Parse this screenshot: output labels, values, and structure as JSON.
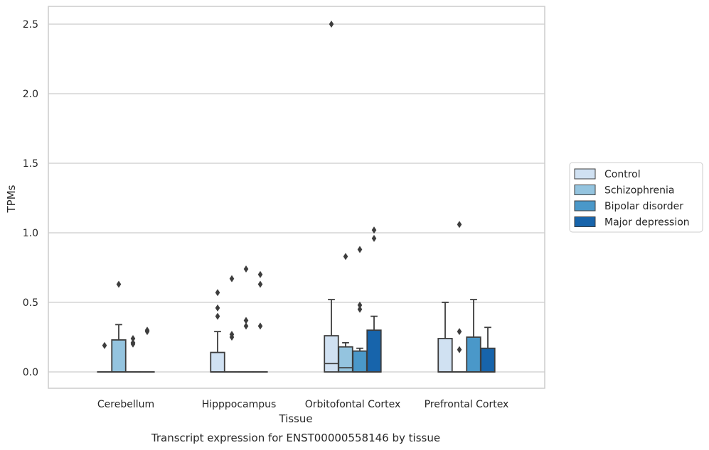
{
  "chart_data": {
    "type": "boxplot",
    "caption": "Transcript expression for ENST00000558146 by tissue",
    "xlabel": "Tissue",
    "ylabel": "TPMs",
    "ylim": [
      -0.12,
      2.63
    ],
    "yticks": [
      "0.0",
      "0.5",
      "1.0",
      "1.5",
      "2.0",
      "2.5"
    ],
    "grid": true,
    "legend_position": "right",
    "categories": [
      "Cerebellum",
      "Hipppocampus",
      "Orbitofontal Cortex",
      "Prefrontal Cortex"
    ],
    "series": [
      {
        "name": "Control",
        "color": "#d0e1f2",
        "boxes": [
          {
            "q1": 0,
            "median": 0,
            "q3": 0,
            "whislo": 0,
            "whishi": 0,
            "fliers": [
              0.19
            ]
          },
          {
            "q1": 0,
            "median": 0,
            "q3": 0.14,
            "whislo": 0,
            "whishi": 0.29,
            "fliers": [
              0.4,
              0.46,
              0.57
            ]
          },
          {
            "q1": 0,
            "median": 0.06,
            "q3": 0.26,
            "whislo": 0,
            "whishi": 0.52,
            "fliers": [
              2.5
            ]
          },
          {
            "q1": 0,
            "median": 0,
            "q3": 0.24,
            "whislo": 0,
            "whishi": 0.5,
            "fliers": []
          }
        ]
      },
      {
        "name": "Schizophrenia",
        "color": "#94c4df",
        "boxes": [
          {
            "q1": 0,
            "median": 0,
            "q3": 0.23,
            "whislo": 0,
            "whishi": 0.34,
            "fliers": [
              0.63
            ]
          },
          {
            "q1": 0,
            "median": 0,
            "q3": 0,
            "whislo": 0,
            "whishi": 0,
            "fliers": [
              0.25,
              0.27,
              0.67
            ]
          },
          {
            "q1": 0,
            "median": 0.03,
            "q3": 0.18,
            "whislo": 0,
            "whishi": 0.21,
            "fliers": [
              0.83
            ]
          },
          {
            "q1": 0,
            "median": 0,
            "q3": 0,
            "whislo": 0,
            "whishi": 0,
            "fliers": [
              0.16,
              0.29,
              1.06
            ]
          }
        ]
      },
      {
        "name": "Bipolar disorder",
        "color": "#4a98c9",
        "boxes": [
          {
            "q1": 0,
            "median": 0,
            "q3": 0,
            "whislo": 0,
            "whishi": 0,
            "fliers": [
              0.2,
              0.21,
              0.24
            ]
          },
          {
            "q1": 0,
            "median": 0,
            "q3": 0,
            "whislo": 0,
            "whishi": 0,
            "fliers": [
              0.33,
              0.37,
              0.74
            ]
          },
          {
            "q1": 0,
            "median": 0,
            "q3": 0.15,
            "whislo": 0,
            "whishi": 0.17,
            "fliers": [
              0.45,
              0.48,
              0.88
            ]
          },
          {
            "q1": 0,
            "median": 0,
            "q3": 0.25,
            "whislo": 0,
            "whishi": 0.52,
            "fliers": []
          }
        ]
      },
      {
        "name": "Major depression",
        "color": "#1764ab",
        "boxes": [
          {
            "q1": 0,
            "median": 0,
            "q3": 0,
            "whislo": 0,
            "whishi": 0,
            "fliers": [
              0.29,
              0.3
            ]
          },
          {
            "q1": 0,
            "median": 0,
            "q3": 0,
            "whislo": 0,
            "whishi": 0,
            "fliers": [
              0.33,
              0.63,
              0.7
            ]
          },
          {
            "q1": 0,
            "median": 0,
            "q3": 0.3,
            "whislo": 0,
            "whishi": 0.4,
            "fliers": [
              0.96,
              1.02
            ]
          },
          {
            "q1": 0,
            "median": 0,
            "q3": 0.17,
            "whislo": 0,
            "whishi": 0.32,
            "fliers": []
          }
        ]
      }
    ]
  },
  "colors": {
    "grid": "#cccccc",
    "frame": "#cccccc",
    "box_edge": "#3d3d3d",
    "text": "#262626"
  }
}
